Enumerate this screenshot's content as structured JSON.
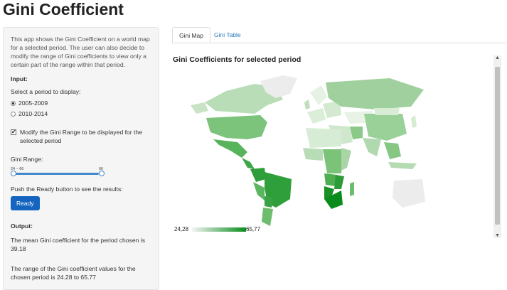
{
  "page": {
    "title": "Gini Coefficient"
  },
  "sidebar": {
    "intro": "This app shows the Gini Coefficient on a world map for a selected period. The user can also decide to modify the range of Gini coefficients to view only a certain part of the range within that period.",
    "input_label": "Input:",
    "period_prompt": "Select a period to display:",
    "periods": [
      {
        "label": "2005-2009",
        "selected": true
      },
      {
        "label": "2010-2014",
        "selected": false
      }
    ],
    "modify_checkbox_label": "Modify the Gini Range to be displayed for the selected period",
    "modify_checked": true,
    "range_label": "Gini Range:",
    "slider": {
      "min_label": "24 – 66",
      "max_label": "66",
      "low": 24,
      "high": 66
    },
    "push_text": "Push the Ready button to see the results:",
    "ready_button": "Ready",
    "output_label": "Output:",
    "mean_text": "The mean Gini coefficient for the period chosen is 39.18",
    "range_text": "The range of the Gini coefficient values for the chosen period is 24.28 to 65.77"
  },
  "tabs": [
    {
      "label": "Gini Map",
      "active": true
    },
    {
      "label": "Gini Table",
      "active": false
    }
  ],
  "map": {
    "title": "Gini Coefficients for selected period",
    "legend_min": "24,28",
    "legend_max": "65,77",
    "colors": {
      "low": "#f4f4f4",
      "high": "#0a8c1c",
      "nodata": "#e6e6e6"
    }
  }
}
